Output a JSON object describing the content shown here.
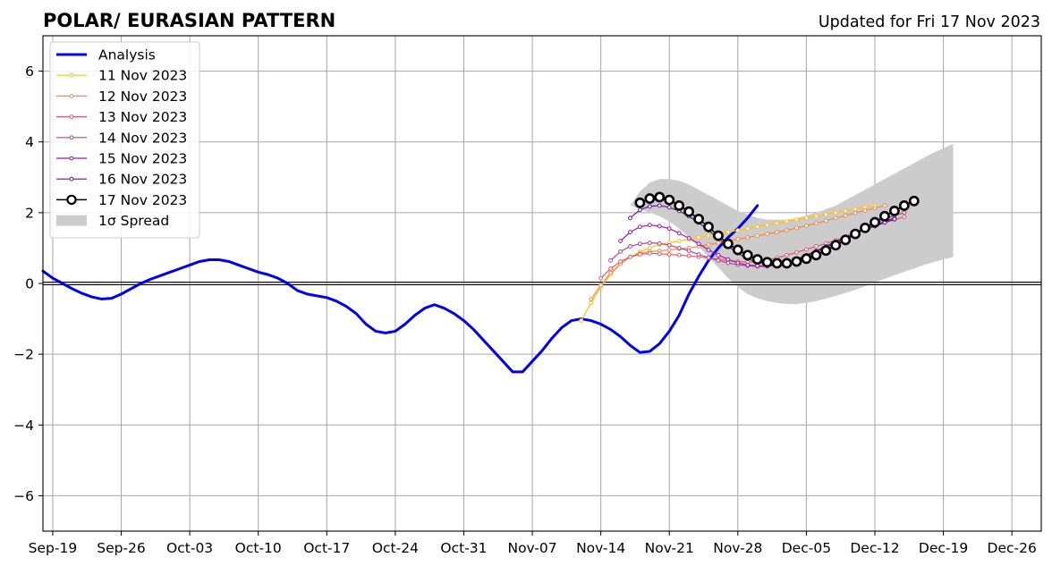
{
  "chart_data": {
    "type": "line",
    "title": "POLAR/ EURASIAN  PATTERN",
    "subtitle": "Updated for Fri 17 Nov 2023",
    "ylim": [
      -7,
      7
    ],
    "x_range": [
      "2023-09-18",
      "2023-12-29"
    ],
    "x_ticks": [
      "Sep-19",
      "Sep-26",
      "Oct-03",
      "Oct-10",
      "Oct-17",
      "Oct-24",
      "Oct-31",
      "Nov-07",
      "Nov-14",
      "Nov-21",
      "Nov-28",
      "Dec-05",
      "Dec-12",
      "Dec-19",
      "Dec-26"
    ],
    "y_ticks": [
      -6,
      -4,
      -2,
      0,
      2,
      4,
      6
    ],
    "y_tick_labels": [
      "−6",
      "−4",
      "−2",
      "0",
      "2",
      "4",
      "6"
    ],
    "grid": true,
    "legend_position": "top-left",
    "analysis": {
      "name": "Analysis",
      "color": "#0000ee",
      "start": "2023-09-18",
      "values": [
        0.35,
        0.15,
        0.0,
        -0.15,
        -0.28,
        -0.38,
        -0.44,
        -0.42,
        -0.3,
        -0.15,
        0.0,
        0.12,
        0.22,
        0.32,
        0.42,
        0.52,
        0.62,
        0.67,
        0.67,
        0.62,
        0.52,
        0.42,
        0.32,
        0.25,
        0.15,
        0.0,
        -0.2,
        -0.3,
        -0.35,
        -0.4,
        -0.5,
        -0.65,
        -0.85,
        -1.15,
        -1.35,
        -1.4,
        -1.35,
        -1.15,
        -0.9,
        -0.7,
        -0.6,
        -0.7,
        -0.85,
        -1.05,
        -1.3,
        -1.6,
        -1.9,
        -2.2,
        -2.5,
        -2.5,
        -2.2,
        -1.9,
        -1.55,
        -1.25,
        -1.05,
        -1.0,
        -1.05,
        -1.15,
        -1.3,
        -1.5,
        -1.75,
        -1.95,
        -1.92,
        -1.7,
        -1.35,
        -0.9,
        -0.3,
        0.2,
        0.65,
        1.0,
        1.3,
        1.55,
        1.85,
        2.2
      ]
    },
    "forecasts": [
      {
        "name": "11 Nov 2023",
        "color": "#fbbf24",
        "start": "2023-11-12",
        "values": [
          -1.05,
          -0.55,
          -0.1,
          0.25,
          0.55,
          0.75,
          0.9,
          1.0,
          1.1,
          1.15,
          1.2,
          1.25,
          1.3,
          1.35,
          1.4,
          1.45,
          1.5,
          1.55,
          1.6,
          1.65,
          1.7,
          1.75,
          1.8,
          1.85,
          1.9,
          1.95,
          2.0,
          2.05,
          2.1,
          2.15,
          2.2
        ]
      },
      {
        "name": "12 Nov 2023",
        "color": "#ef8a4a",
        "start": "2023-11-13",
        "values": [
          -0.45,
          -0.05,
          0.3,
          0.55,
          0.75,
          0.85,
          0.9,
          0.92,
          0.95,
          0.98,
          1.0,
          1.05,
          1.1,
          1.15,
          1.2,
          1.25,
          1.3,
          1.35,
          1.4,
          1.45,
          1.5,
          1.57,
          1.63,
          1.7,
          1.77,
          1.85,
          1.92,
          1.99,
          2.06,
          2.13,
          2.2
        ]
      },
      {
        "name": "13 Nov 2023",
        "color": "#e05a6a",
        "start": "2023-11-14",
        "values": [
          0.15,
          0.42,
          0.62,
          0.75,
          0.82,
          0.85,
          0.84,
          0.82,
          0.8,
          0.78,
          0.75,
          0.72,
          0.68,
          0.65,
          0.62,
          0.6,
          0.62,
          0.66,
          0.72,
          0.8,
          0.88,
          0.96,
          1.05,
          1.13,
          1.22,
          1.32,
          1.42,
          1.52,
          1.62,
          1.72,
          1.8,
          1.88
        ]
      },
      {
        "name": "14 Nov 2023",
        "color": "#b8408c",
        "start": "2023-11-15",
        "values": [
          0.65,
          0.9,
          1.05,
          1.12,
          1.15,
          1.13,
          1.08,
          1.0,
          0.92,
          0.82,
          0.73,
          0.65,
          0.58,
          0.53,
          0.5,
          0.48,
          0.48,
          0.52,
          0.58,
          0.68,
          0.8,
          0.92,
          1.05,
          1.18,
          1.32,
          1.45,
          1.58,
          1.7,
          1.82,
          1.92,
          2.0
        ]
      },
      {
        "name": "15 Nov 2023",
        "color": "#9b1ba8",
        "start": "2023-11-16",
        "values": [
          1.2,
          1.45,
          1.6,
          1.65,
          1.62,
          1.55,
          1.42,
          1.28,
          1.12,
          0.95,
          0.8,
          0.68,
          0.58,
          0.52,
          0.5,
          0.5,
          0.52,
          0.58,
          0.68,
          0.8,
          0.92,
          1.05,
          1.18,
          1.3,
          1.42,
          1.55,
          1.65,
          1.75,
          1.85
        ]
      },
      {
        "name": "16 Nov 2023",
        "color": "#5a1a9a",
        "start": "2023-11-17",
        "values": [
          1.85,
          2.08,
          2.18,
          2.2,
          2.15,
          2.05,
          1.9,
          1.72,
          1.5,
          1.28,
          1.05,
          0.85,
          0.7,
          0.6,
          0.55,
          0.55,
          0.6,
          0.68,
          0.78,
          0.9,
          1.02,
          1.15,
          1.28,
          1.4,
          1.52,
          1.62,
          1.72,
          1.82
        ]
      },
      {
        "name": "17 Nov 2023",
        "color": "#000000",
        "start": "2023-11-18",
        "values": [
          2.28,
          2.4,
          2.44,
          2.36,
          2.2,
          2.03,
          1.82,
          1.6,
          1.35,
          1.12,
          0.95,
          0.8,
          0.68,
          0.6,
          0.57,
          0.57,
          0.62,
          0.7,
          0.8,
          0.93,
          1.08,
          1.23,
          1.4,
          1.57,
          1.73,
          1.9,
          2.05,
          2.2,
          2.33
        ]
      }
    ],
    "spread": {
      "name": "1σ Spread",
      "color": "#cccccc",
      "start": "2023-11-17",
      "upper": [
        2.2,
        2.6,
        2.85,
        2.95,
        2.95,
        2.9,
        2.8,
        2.65,
        2.5,
        2.35,
        2.2,
        2.05,
        1.95,
        1.85,
        1.8,
        1.8,
        1.8,
        1.85,
        1.92,
        2.0,
        2.1,
        2.2,
        2.35,
        2.5,
        2.65,
        2.8,
        2.95,
        3.1,
        3.25,
        3.4,
        3.55,
        3.7,
        3.82,
        3.95
      ],
      "lower": [
        2.2,
        2.1,
        2.0,
        1.9,
        1.75,
        1.55,
        1.3,
        1.05,
        0.75,
        0.45,
        0.15,
        -0.1,
        -0.3,
        -0.42,
        -0.5,
        -0.55,
        -0.58,
        -0.58,
        -0.55,
        -0.5,
        -0.43,
        -0.35,
        -0.27,
        -0.18,
        -0.08,
        0.03,
        0.13,
        0.23,
        0.33,
        0.42,
        0.52,
        0.6,
        0.68,
        0.75
      ]
    }
  }
}
